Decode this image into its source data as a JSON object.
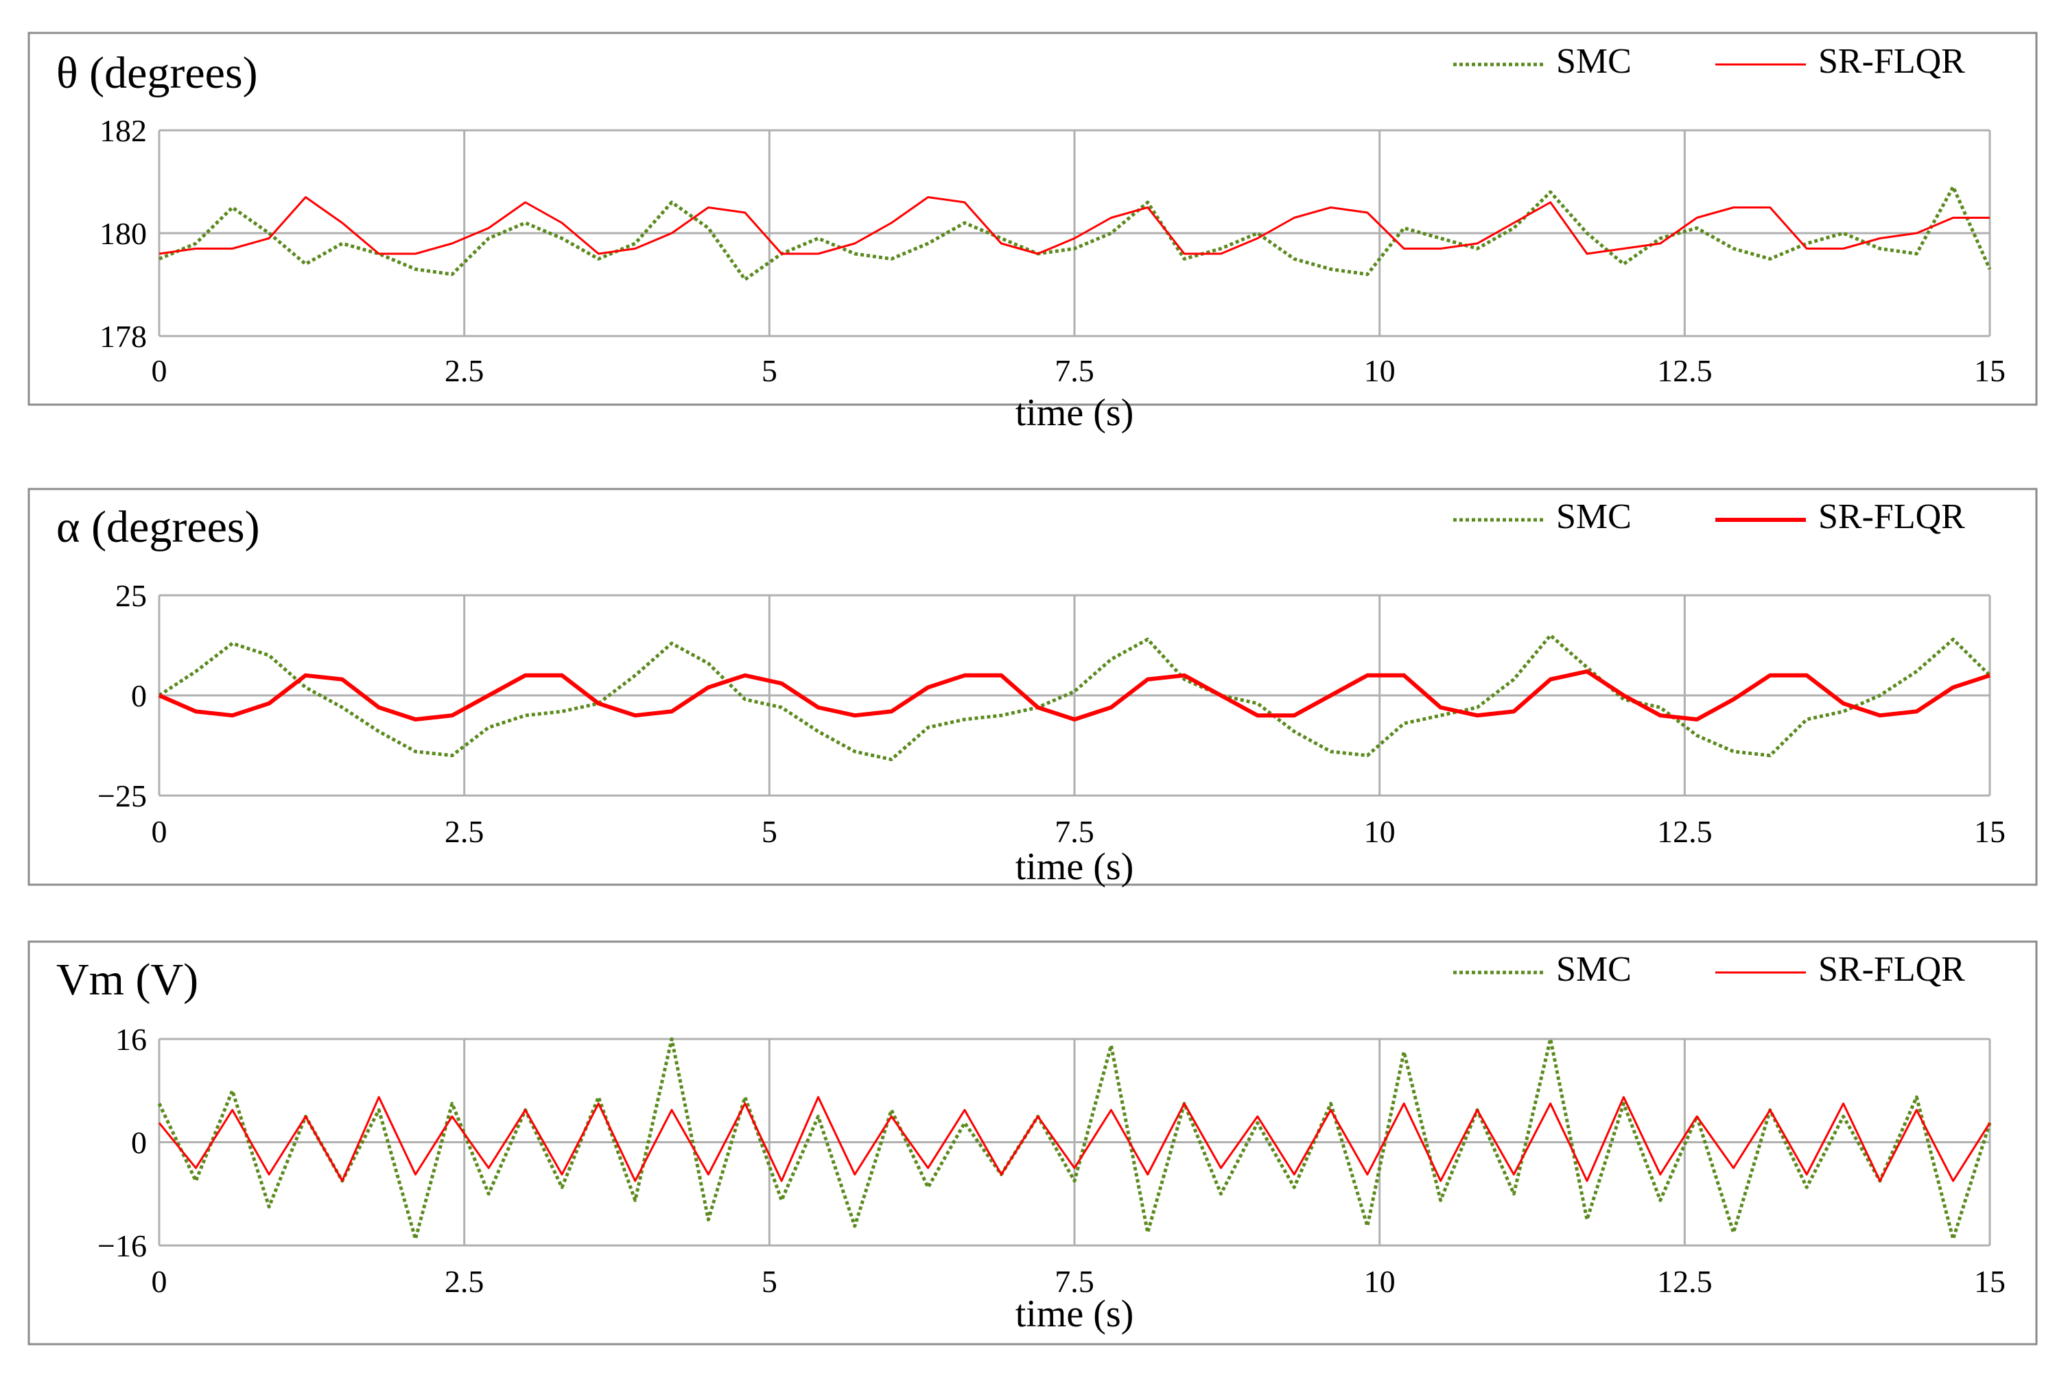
{
  "chart_data": [
    {
      "type": "line",
      "title": "θ (degrees)",
      "xlabel": "time (s)",
      "ylabel": "θ (degrees)",
      "xlim": [
        0,
        15
      ],
      "ylim": [
        178,
        182
      ],
      "x_ticks": [
        "0",
        "2.5",
        "5",
        "7.5",
        "10",
        "12.5",
        "15"
      ],
      "y_ticks": [
        "182",
        "180",
        "178"
      ],
      "grid": true,
      "legend_position": "top-right",
      "series": [
        {
          "name": "SMC",
          "style": "dotted",
          "color": "#5a8a1e",
          "x": [
            0,
            0.3,
            0.6,
            0.9,
            1.2,
            1.5,
            1.8,
            2.1,
            2.4,
            2.7,
            3.0,
            3.3,
            3.6,
            3.9,
            4.2,
            4.5,
            4.8,
            5.1,
            5.4,
            5.7,
            6.0,
            6.3,
            6.6,
            6.9,
            7.2,
            7.5,
            7.8,
            8.1,
            8.4,
            8.7,
            9.0,
            9.3,
            9.6,
            9.9,
            10.2,
            10.5,
            10.8,
            11.1,
            11.4,
            11.7,
            12.0,
            12.3,
            12.6,
            12.9,
            13.2,
            13.5,
            13.8,
            14.1,
            14.4,
            14.7,
            15.0
          ],
          "y": [
            179.5,
            179.8,
            180.5,
            180.0,
            179.4,
            179.8,
            179.6,
            179.3,
            179.2,
            179.9,
            180.2,
            179.9,
            179.5,
            179.8,
            180.6,
            180.1,
            179.1,
            179.6,
            179.9,
            179.6,
            179.5,
            179.8,
            180.2,
            179.9,
            179.6,
            179.7,
            180.0,
            180.6,
            179.5,
            179.7,
            180.0,
            179.5,
            179.3,
            179.2,
            180.1,
            179.9,
            179.7,
            180.1,
            180.8,
            180.0,
            179.4,
            179.9,
            180.1,
            179.7,
            179.5,
            179.8,
            180.0,
            179.7,
            179.6,
            180.9,
            179.3
          ]
        },
        {
          "name": "SR-FLQR",
          "style": "solid",
          "color": "#ff0000",
          "x": [
            0,
            0.3,
            0.6,
            0.9,
            1.2,
            1.5,
            1.8,
            2.1,
            2.4,
            2.7,
            3.0,
            3.3,
            3.6,
            3.9,
            4.2,
            4.5,
            4.8,
            5.1,
            5.4,
            5.7,
            6.0,
            6.3,
            6.6,
            6.9,
            7.2,
            7.5,
            7.8,
            8.1,
            8.4,
            8.7,
            9.0,
            9.3,
            9.6,
            9.9,
            10.2,
            10.5,
            10.8,
            11.1,
            11.4,
            11.7,
            12.0,
            12.3,
            12.6,
            12.9,
            13.2,
            13.5,
            13.8,
            14.1,
            14.4,
            14.7,
            15.0
          ],
          "y": [
            179.6,
            179.7,
            179.7,
            179.9,
            180.7,
            180.2,
            179.6,
            179.6,
            179.8,
            180.1,
            180.6,
            180.2,
            179.6,
            179.7,
            180.0,
            180.5,
            180.4,
            179.6,
            179.6,
            179.8,
            180.2,
            180.7,
            180.6,
            179.8,
            179.6,
            179.9,
            180.3,
            180.5,
            179.6,
            179.6,
            179.9,
            180.3,
            180.5,
            180.4,
            179.7,
            179.7,
            179.8,
            180.2,
            180.6,
            179.6,
            179.7,
            179.8,
            180.3,
            180.5,
            180.5,
            179.7,
            179.7,
            179.9,
            180.0,
            180.3,
            180.3
          ]
        }
      ]
    },
    {
      "type": "line",
      "title": "α (degrees)",
      "xlabel": "time (s)",
      "ylabel": "α (degrees)",
      "xlim": [
        0,
        15
      ],
      "ylim": [
        -25,
        25
      ],
      "x_ticks": [
        "0",
        "2.5",
        "5",
        "7.5",
        "10",
        "12.5",
        "15"
      ],
      "y_ticks": [
        "25",
        "0",
        "−25"
      ],
      "grid": true,
      "legend_position": "top-right",
      "series": [
        {
          "name": "SMC",
          "style": "dotted",
          "color": "#5a8a1e",
          "x": [
            0,
            0.3,
            0.6,
            0.9,
            1.2,
            1.5,
            1.8,
            2.1,
            2.4,
            2.7,
            3.0,
            3.3,
            3.6,
            3.9,
            4.2,
            4.5,
            4.8,
            5.1,
            5.4,
            5.7,
            6.0,
            6.3,
            6.6,
            6.9,
            7.2,
            7.5,
            7.8,
            8.1,
            8.4,
            8.7,
            9.0,
            9.3,
            9.6,
            9.9,
            10.2,
            10.5,
            10.8,
            11.1,
            11.4,
            11.7,
            12.0,
            12.3,
            12.6,
            12.9,
            13.2,
            13.5,
            13.8,
            14.1,
            14.4,
            14.7,
            15.0
          ],
          "y": [
            0,
            6,
            13,
            10,
            2,
            -3,
            -9,
            -14,
            -15,
            -8,
            -5,
            -4,
            -2,
            5,
            13,
            8,
            -1,
            -3,
            -9,
            -14,
            -16,
            -8,
            -6,
            -5,
            -3,
            1,
            9,
            14,
            4,
            0,
            -2,
            -9,
            -14,
            -15,
            -7,
            -5,
            -3,
            4,
            15,
            7,
            -1,
            -3,
            -10,
            -14,
            -15,
            -6,
            -4,
            0,
            6,
            14,
            5
          ]
        },
        {
          "name": "SR-FLQR",
          "style": "solid",
          "color": "#ff0000",
          "x": [
            0,
            0.3,
            0.6,
            0.9,
            1.2,
            1.5,
            1.8,
            2.1,
            2.4,
            2.7,
            3.0,
            3.3,
            3.6,
            3.9,
            4.2,
            4.5,
            4.8,
            5.1,
            5.4,
            5.7,
            6.0,
            6.3,
            6.6,
            6.9,
            7.2,
            7.5,
            7.8,
            8.1,
            8.4,
            8.7,
            9.0,
            9.3,
            9.6,
            9.9,
            10.2,
            10.5,
            10.8,
            11.1,
            11.4,
            11.7,
            12.0,
            12.3,
            12.6,
            12.9,
            13.2,
            13.5,
            13.8,
            14.1,
            14.4,
            14.7,
            15.0
          ],
          "y": [
            0,
            -4,
            -5,
            -2,
            5,
            4,
            -3,
            -6,
            -5,
            0,
            5,
            5,
            -2,
            -5,
            -4,
            2,
            5,
            3,
            -3,
            -5,
            -4,
            2,
            5,
            5,
            -3,
            -6,
            -3,
            4,
            5,
            0,
            -5,
            -5,
            0,
            5,
            5,
            -3,
            -5,
            -4,
            4,
            6,
            0,
            -5,
            -6,
            -1,
            5,
            5,
            -2,
            -5,
            -4,
            2,
            5
          ]
        }
      ]
    },
    {
      "type": "line",
      "title": "Vm (V)",
      "xlabel": "time (s)",
      "ylabel": "Vm (V)",
      "xlim": [
        0,
        15
      ],
      "ylim": [
        -16,
        16
      ],
      "x_ticks": [
        "0",
        "2.5",
        "5",
        "7.5",
        "10",
        "12.5",
        "15"
      ],
      "y_ticks": [
        "16",
        "0",
        "−16"
      ],
      "grid": true,
      "legend_position": "top-right",
      "series": [
        {
          "name": "SMC",
          "style": "dotted",
          "color": "#5a8a1e",
          "x": [
            0,
            0.3,
            0.6,
            0.9,
            1.2,
            1.5,
            1.8,
            2.1,
            2.4,
            2.7,
            3.0,
            3.3,
            3.6,
            3.9,
            4.2,
            4.5,
            4.8,
            5.1,
            5.4,
            5.7,
            6.0,
            6.3,
            6.6,
            6.9,
            7.2,
            7.5,
            7.8,
            8.1,
            8.4,
            8.7,
            9.0,
            9.3,
            9.6,
            9.9,
            10.2,
            10.5,
            10.8,
            11.1,
            11.4,
            11.7,
            12.0,
            12.3,
            12.6,
            12.9,
            13.2,
            13.5,
            13.8,
            14.1,
            14.4,
            14.7,
            15.0
          ],
          "y": [
            6,
            -6,
            8,
            -10,
            4,
            -6,
            5,
            -15,
            6,
            -8,
            5,
            -7,
            7,
            -9,
            16,
            -12,
            7,
            -9,
            4,
            -13,
            5,
            -7,
            3,
            -5,
            4,
            -6,
            15,
            -14,
            6,
            -8,
            3,
            -7,
            6,
            -13,
            14,
            -9,
            5,
            -8,
            16,
            -12,
            6,
            -9,
            4,
            -14,
            5,
            -7,
            4,
            -6,
            7,
            -15,
            3
          ]
        },
        {
          "name": "SR-FLQR",
          "style": "solid",
          "color": "#ff0000",
          "x": [
            0,
            0.3,
            0.6,
            0.9,
            1.2,
            1.5,
            1.8,
            2.1,
            2.4,
            2.7,
            3.0,
            3.3,
            3.6,
            3.9,
            4.2,
            4.5,
            4.8,
            5.1,
            5.4,
            5.7,
            6.0,
            6.3,
            6.6,
            6.9,
            7.2,
            7.5,
            7.8,
            8.1,
            8.4,
            8.7,
            9.0,
            9.3,
            9.6,
            9.9,
            10.2,
            10.5,
            10.8,
            11.1,
            11.4,
            11.7,
            12.0,
            12.3,
            12.6,
            12.9,
            13.2,
            13.5,
            13.8,
            14.1,
            14.4,
            14.7,
            15.0
          ],
          "y": [
            3,
            -4,
            5,
            -5,
            4,
            -6,
            7,
            -5,
            4,
            -4,
            5,
            -5,
            6,
            -6,
            5,
            -5,
            6,
            -6,
            7,
            -5,
            4,
            -4,
            5,
            -5,
            4,
            -4,
            5,
            -5,
            6,
            -4,
            4,
            -5,
            5,
            -5,
            6,
            -6,
            5,
            -5,
            6,
            -6,
            7,
            -5,
            4,
            -4,
            5,
            -5,
            6,
            -6,
            5,
            -6,
            3
          ]
        }
      ]
    }
  ]
}
